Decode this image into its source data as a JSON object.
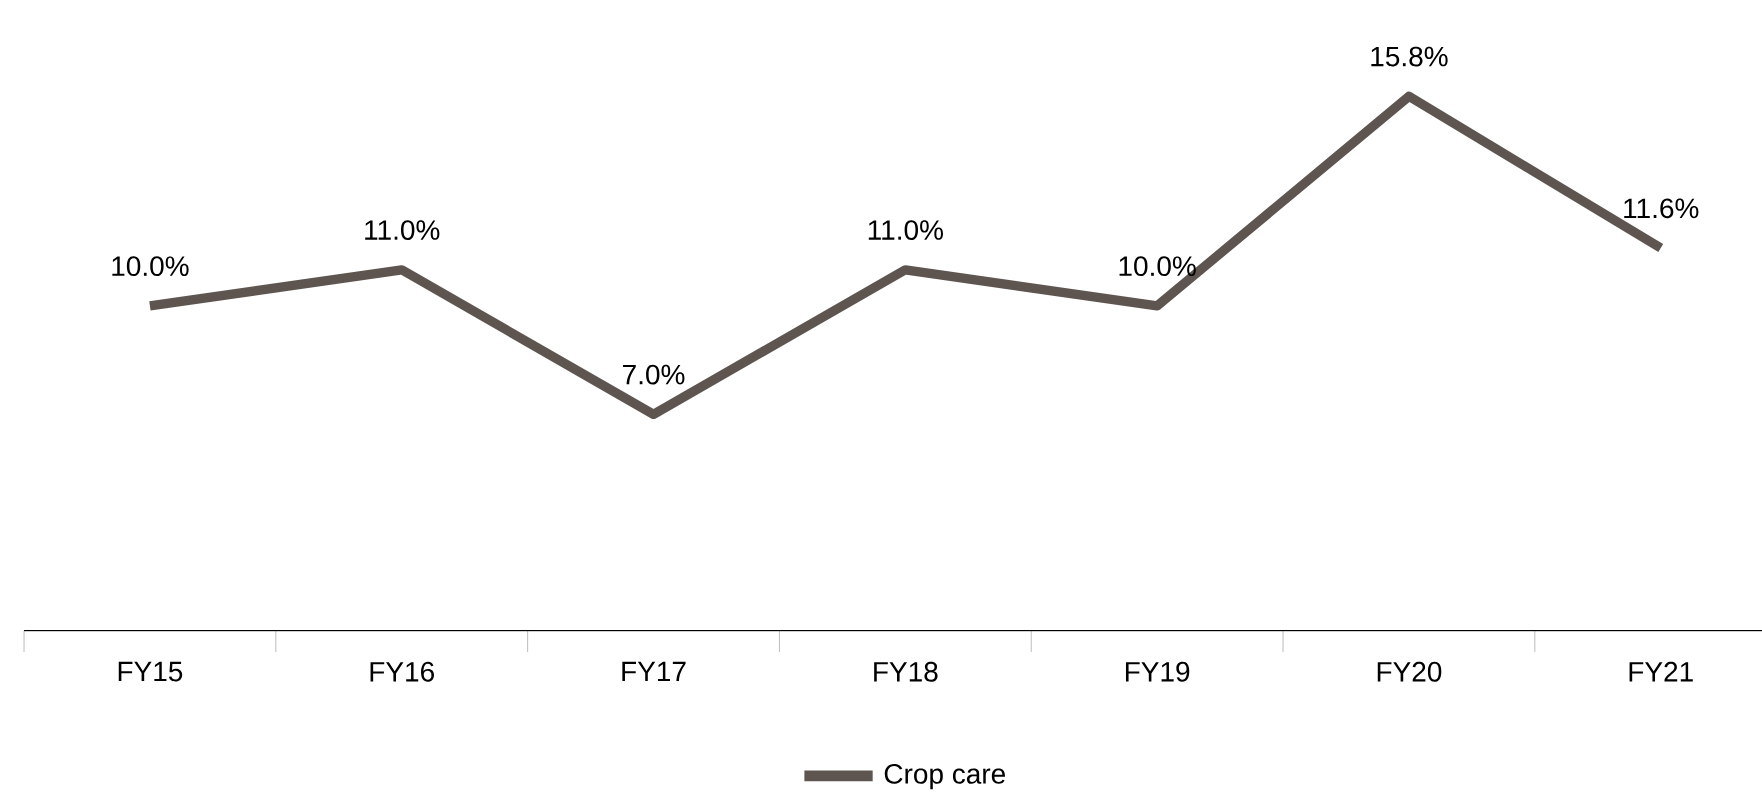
{
  "chart_data": {
    "type": "line",
    "categories": [
      "FY15",
      "FY16",
      "FY17",
      "FY18",
      "FY19",
      "FY20",
      "FY21"
    ],
    "series": [
      {
        "name": "Crop care",
        "color": "#5e5551",
        "values": [
          10.0,
          11.0,
          7.0,
          11.0,
          10.0,
          15.8,
          11.6
        ],
        "value_labels": [
          "10.0%",
          "11.0%",
          "7.0%",
          "11.0%",
          "10.0%",
          "15.8%",
          "11.6%"
        ]
      }
    ],
    "legend": "bottom"
  }
}
